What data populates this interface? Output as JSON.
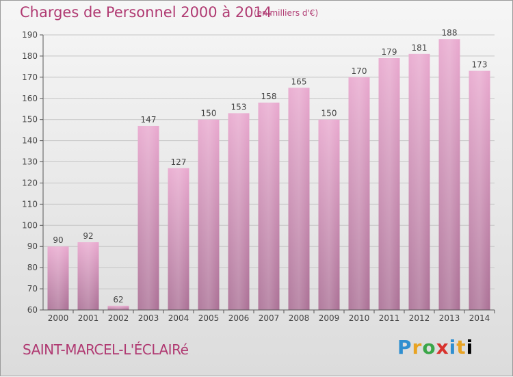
{
  "title": "Charges de Personnel 2000 à 2014",
  "subtitle": "(en milliers d'€)",
  "commune": "SAINT-MARCEL-L'ÉCLAIRé",
  "logo": "Proxiti",
  "colors": {
    "accent": "#b03a72",
    "bar_top": "#e8a6cd",
    "bar_bottom": "#a86c92"
  },
  "chart_data": {
    "type": "bar",
    "title": "Charges de Personnel 2000 à 2014",
    "subtitle": "(en milliers d'€)",
    "categories": [
      "2000",
      "2001",
      "2002",
      "2003",
      "2004",
      "2005",
      "2006",
      "2007",
      "2008",
      "2009",
      "2010",
      "2011",
      "2012",
      "2013",
      "2014"
    ],
    "values": [
      90,
      92,
      62,
      147,
      127,
      150,
      153,
      158,
      165,
      150,
      170,
      179,
      181,
      188,
      173
    ],
    "ylim": [
      60,
      190
    ],
    "yticks": [
      60,
      70,
      80,
      90,
      100,
      110,
      120,
      130,
      140,
      150,
      160,
      170,
      180,
      190
    ],
    "grid": true,
    "legend": "none"
  }
}
